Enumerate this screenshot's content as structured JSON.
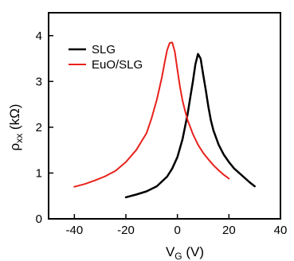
{
  "chart_data": {
    "type": "line",
    "xlabel": "V",
    "xlabel_sub": "G",
    "xlabel_unit": " (V)",
    "ylabel": "ρ",
    "ylabel_sub": "xx",
    "ylabel_unit": " (kΩ)",
    "xlim": [
      -50,
      40
    ],
    "ylim": [
      0,
      4.5
    ],
    "xticks": [
      -40,
      -20,
      0,
      20,
      40
    ],
    "yticks": [
      0,
      1,
      2,
      3,
      4
    ],
    "grid": false,
    "legend_position": "top-left",
    "series": [
      {
        "name": "SLG",
        "color": "#000000",
        "x": [
          -20,
          -16,
          -12,
          -8,
          -4,
          -2,
          0,
          2,
          4,
          5,
          6,
          7,
          8,
          9,
          10,
          11,
          12,
          13,
          14,
          16,
          18,
          20,
          22,
          25,
          28,
          30
        ],
        "y": [
          0.47,
          0.53,
          0.6,
          0.71,
          0.92,
          1.1,
          1.35,
          1.74,
          2.3,
          2.65,
          3.0,
          3.38,
          3.6,
          3.5,
          3.15,
          2.82,
          2.45,
          2.15,
          1.93,
          1.62,
          1.4,
          1.24,
          1.1,
          0.95,
          0.8,
          0.71
        ]
      },
      {
        "name": "EuO/SLG",
        "color": "#e8211c",
        "x": [
          -40,
          -36,
          -32,
          -28,
          -24,
          -20,
          -16,
          -12,
          -10,
          -8,
          -6,
          -5,
          -4,
          -3,
          -2,
          -1,
          0,
          1,
          2,
          3,
          4,
          6,
          8,
          10,
          12,
          14,
          16,
          18,
          20
        ],
        "y": [
          0.7,
          0.76,
          0.84,
          0.93,
          1.05,
          1.24,
          1.5,
          1.87,
          2.2,
          2.6,
          3.1,
          3.4,
          3.68,
          3.84,
          3.85,
          3.65,
          3.25,
          2.88,
          2.58,
          2.35,
          2.15,
          1.85,
          1.62,
          1.44,
          1.3,
          1.17,
          1.06,
          0.96,
          0.88
        ]
      }
    ]
  }
}
